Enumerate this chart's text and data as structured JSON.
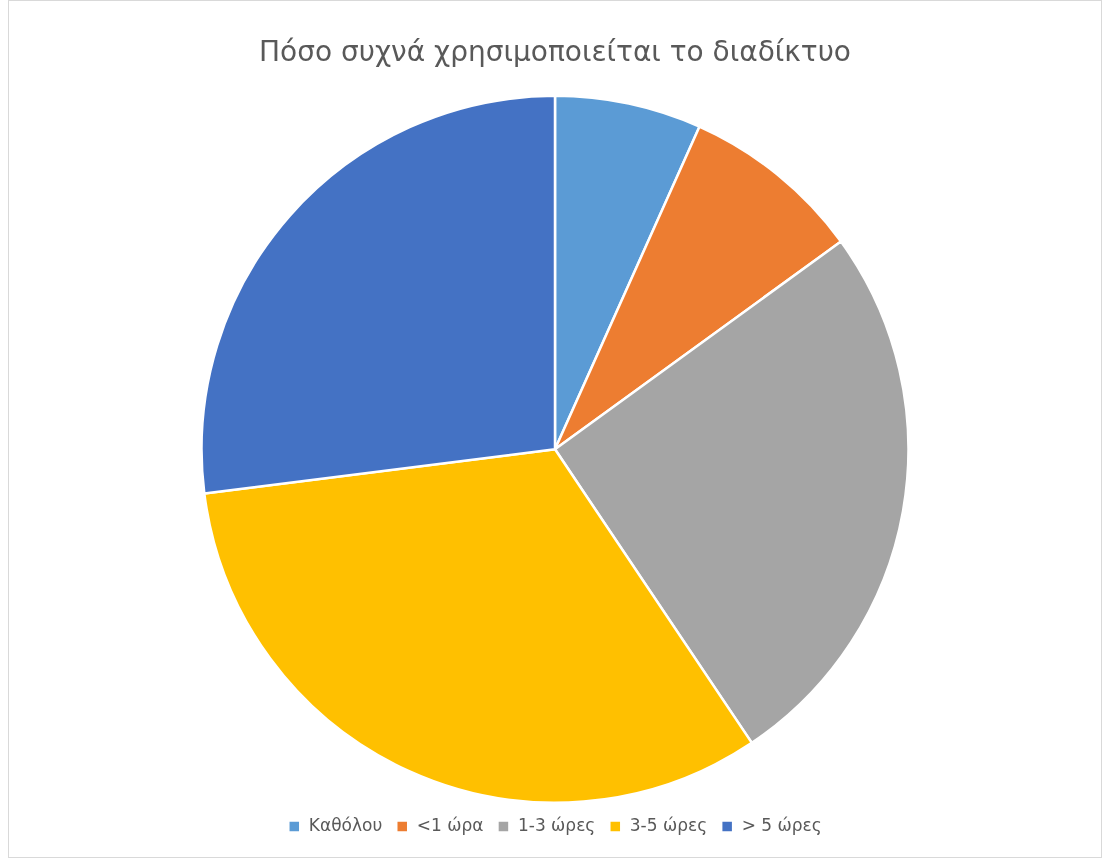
{
  "chart_data": {
    "type": "pie",
    "title": "Πόσο συχνά χρησιμοποιείται το διαδίκτυο",
    "categories": [
      "Καθόλου",
      "<1 ώρα",
      "1-3 ώρες",
      "3-5 ώρες",
      "> 5 ώρες"
    ],
    "values": [
      6.7,
      8.3,
      25.6,
      32.4,
      27.0
    ],
    "colors": [
      "#5b9bd5",
      "#ed7d31",
      "#a5a5a5",
      "#ffc000",
      "#4472c4"
    ],
    "legend": "bottom"
  }
}
